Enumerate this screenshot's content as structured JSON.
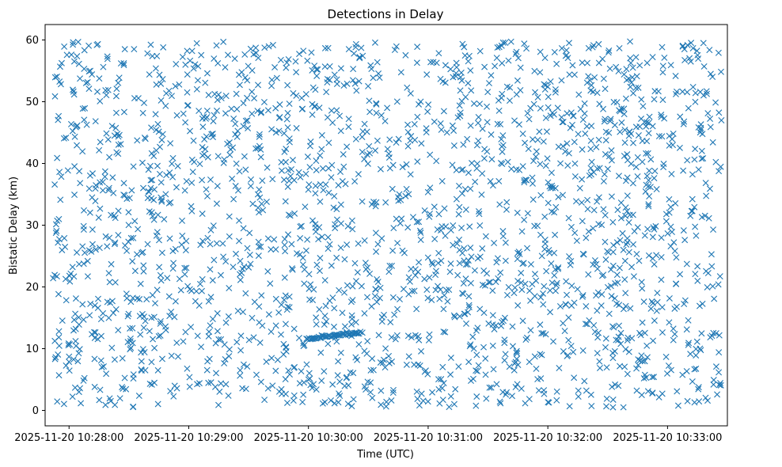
{
  "chart_data": {
    "type": "scatter",
    "title": "Detections in Delay",
    "xlabel": "Time (UTC)",
    "ylabel": "Bistatic Delay (km)",
    "x_unit": "seconds since 2025-11-20 10:28:00",
    "xlim": [
      -12,
      330
    ],
    "ylim": [
      -2.5,
      62.5
    ],
    "xticks": [
      {
        "value": 0,
        "label": "2025-11-20 10:28:00"
      },
      {
        "value": 60,
        "label": "2025-11-20 10:29:00"
      },
      {
        "value": 120,
        "label": "2025-11-20 10:30:00"
      },
      {
        "value": 180,
        "label": "2025-11-20 10:31:00"
      },
      {
        "value": 240,
        "label": "2025-11-20 10:32:00"
      },
      {
        "value": 300,
        "label": "2025-11-20 10:33:00"
      }
    ],
    "yticks": [
      {
        "value": 0,
        "label": "0"
      },
      {
        "value": 10,
        "label": "10"
      },
      {
        "value": 20,
        "label": "20"
      },
      {
        "value": 30,
        "label": "30"
      },
      {
        "value": 40,
        "label": "40"
      },
      {
        "value": 50,
        "label": "50"
      },
      {
        "value": 60,
        "label": "60"
      }
    ],
    "marker": "x",
    "color": "#1f77b4",
    "grid": false,
    "series": [
      {
        "name": "Detections",
        "noise": {
          "count": 2200,
          "x_range": [
            -8,
            327
          ],
          "y_range": [
            0.5,
            59.8
          ],
          "seed": 20251120
        },
        "track": {
          "x_start": 119,
          "x_end": 146,
          "y_start": 11.6,
          "y_end": 12.6,
          "count": 45
        },
        "points_sample": [
          [
            0.0,
            8.7
          ],
          [
            5.0,
            3.0
          ],
          [
            45.0,
            12.0
          ],
          [
            70.0,
            12.0
          ],
          [
            75.0,
            11.5
          ],
          [
            113.0,
            7.0
          ],
          [
            122.0,
            11.7
          ],
          [
            133.0,
            12.1
          ],
          [
            144.0,
            12.5
          ],
          [
            200.0,
            53.0
          ],
          [
            245.0,
            49.0
          ],
          [
            310.0,
            1.5
          ],
          [
            318.0,
            59.5
          ]
        ]
      }
    ]
  }
}
